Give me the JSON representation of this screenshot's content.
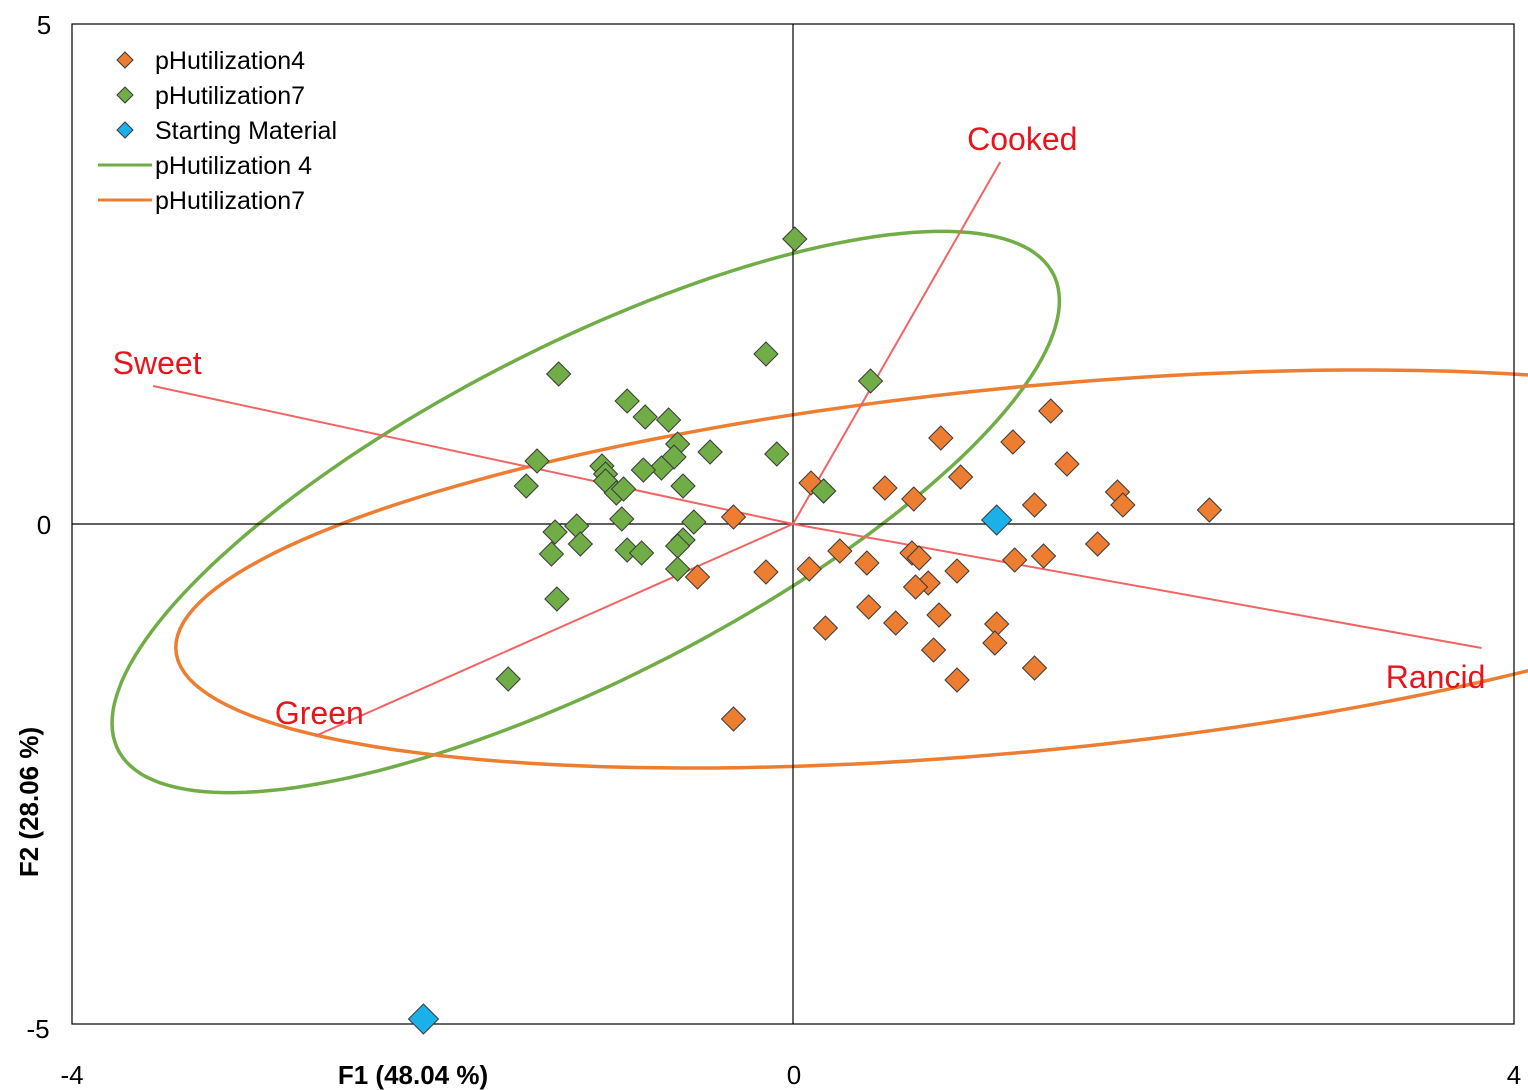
{
  "chart_data": {
    "type": "scatter",
    "title": "",
    "xlabel": "F1 (48.04 %)",
    "ylabel": "F2 (28.06 %)",
    "xlim": [
      -4,
      4
    ],
    "ylim": [
      -5,
      5
    ],
    "x_ticks": [
      "-4",
      "0",
      "4"
    ],
    "y_ticks": [
      "5",
      "0",
      "-5"
    ],
    "grid": false,
    "legend_position": "top-left",
    "legend": [
      {
        "label": "pHutilization4",
        "kind": "marker",
        "color": "#ed7d31"
      },
      {
        "label": "pHutilization7",
        "kind": "marker",
        "color": "#70ad47"
      },
      {
        "label": "Starting Material",
        "kind": "marker",
        "color": "#1ab0e8"
      },
      {
        "label": "pHutilization 4",
        "kind": "line",
        "color": "#70ad47"
      },
      {
        "label": "pHutilization7",
        "kind": "line",
        "color": "#ed7d31"
      }
    ],
    "series": [
      {
        "name": "pHutilization4",
        "color": "#ed7d31",
        "marker": "diamond",
        "points": [
          [
            1.43,
            1.13
          ],
          [
            0.82,
            0.86
          ],
          [
            1.22,
            0.82
          ],
          [
            1.52,
            0.6
          ],
          [
            0.93,
            0.47
          ],
          [
            0.51,
            0.36
          ],
          [
            0.67,
            0.25
          ],
          [
            0.1,
            0.41
          ],
          [
            0.17,
            0.33
          ],
          [
            1.34,
            0.19
          ],
          [
            1.8,
            0.32
          ],
          [
            1.83,
            0.19
          ],
          [
            2.31,
            0.14
          ],
          [
            1.69,
            -0.2
          ],
          [
            1.39,
            -0.32
          ],
          [
            1.23,
            -0.36
          ],
          [
            0.26,
            -0.27
          ],
          [
            0.41,
            -0.39
          ],
          [
            0.66,
            -0.29
          ],
          [
            0.7,
            -0.34
          ],
          [
            0.75,
            -0.59
          ],
          [
            0.68,
            -0.63
          ],
          [
            0.91,
            -0.47
          ],
          [
            0.09,
            -0.45
          ],
          [
            -0.15,
            -0.48
          ],
          [
            -0.33,
            0.07
          ],
          [
            -0.53,
            -0.53
          ],
          [
            0.42,
            -0.83
          ],
          [
            0.57,
            -0.99
          ],
          [
            0.81,
            -0.91
          ],
          [
            1.13,
            -1.0
          ],
          [
            1.12,
            -1.19
          ],
          [
            0.78,
            -1.26
          ],
          [
            0.91,
            -1.56
          ],
          [
            1.34,
            -1.44
          ],
          [
            0.18,
            -1.04
          ],
          [
            -0.33,
            -1.95
          ]
        ]
      },
      {
        "name": "pHutilization7",
        "color": "#70ad47",
        "marker": "diamond",
        "points": [
          [
            0.01,
            2.85
          ],
          [
            -0.15,
            1.7
          ],
          [
            0.43,
            1.43
          ],
          [
            -1.3,
            1.5
          ],
          [
            -0.92,
            1.23
          ],
          [
            -0.82,
            1.07
          ],
          [
            -0.69,
            1.04
          ],
          [
            -0.64,
            0.8
          ],
          [
            -0.46,
            0.72
          ],
          [
            -0.09,
            0.7
          ],
          [
            -1.42,
            0.63
          ],
          [
            -1.06,
            0.58
          ],
          [
            -1.04,
            0.5
          ],
          [
            -1.04,
            0.43
          ],
          [
            -0.66,
            0.67
          ],
          [
            -0.73,
            0.56
          ],
          [
            -0.83,
            0.54
          ],
          [
            -0.61,
            0.38
          ],
          [
            -1.48,
            0.38
          ],
          [
            -0.98,
            0.31
          ],
          [
            -0.94,
            0.35
          ],
          [
            0.17,
            0.33
          ],
          [
            -0.95,
            0.05
          ],
          [
            -0.55,
            0.02
          ],
          [
            -1.32,
            -0.08
          ],
          [
            -1.2,
            -0.02
          ],
          [
            -1.18,
            -0.2
          ],
          [
            -0.92,
            -0.26
          ],
          [
            -0.84,
            -0.29
          ],
          [
            -0.61,
            -0.16
          ],
          [
            -0.64,
            -0.22
          ],
          [
            -1.34,
            -0.3
          ],
          [
            -0.64,
            -0.45
          ],
          [
            -1.31,
            -0.75
          ],
          [
            -1.58,
            -1.55
          ]
        ]
      },
      {
        "name": "Starting Material",
        "color": "#1ab0e8",
        "marker": "diamond",
        "points": [
          [
            1.13,
            0.04
          ],
          [
            -2.05,
            -4.95
          ]
        ]
      }
    ],
    "confidence_ellipses": [
      {
        "legend": "pHutilization 4",
        "color": "#70ad47",
        "center": [
          -1.15,
          0.12
        ],
        "semi_axes": [
          3.6,
          1.35
        ],
        "angle_deg": 47.5
      },
      {
        "legend": "pHutilization7",
        "color": "#ed7d31",
        "center": [
          1.3,
          -0.45
        ],
        "semi_axes": [
          4.8,
          1.8
        ],
        "angle_deg": 11.0
      }
    ],
    "vectors": [
      {
        "label": "Sweet",
        "x": -3.55,
        "y": 1.38
      },
      {
        "label": "Rancid",
        "x": 3.82,
        "y": -1.24
      },
      {
        "label": "Cooked",
        "x": 1.15,
        "y": 3.62
      },
      {
        "label": "Green",
        "x": -2.65,
        "y": -2.12
      }
    ]
  }
}
